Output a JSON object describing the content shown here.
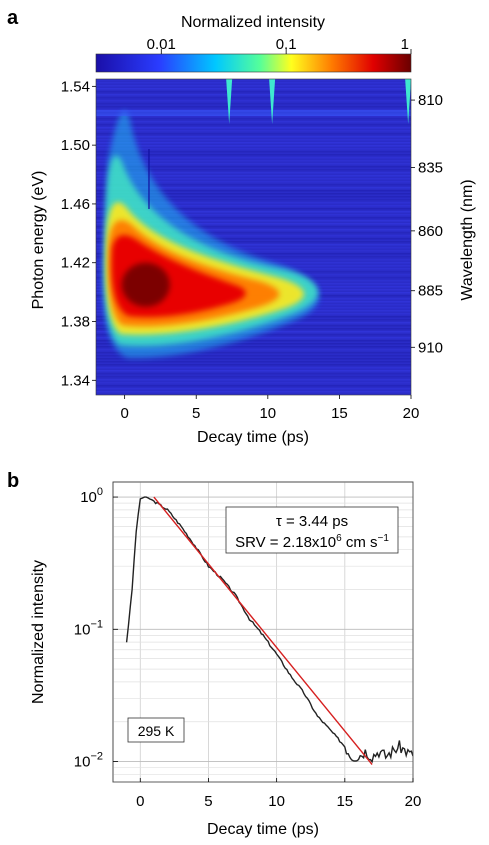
{
  "panel_a": {
    "letter": "a",
    "colorbar": {
      "title": "Normalized intensity",
      "tick_labels": [
        "0.01",
        "0.1",
        "1"
      ],
      "tick_values": [
        0.01,
        0.1,
        1
      ],
      "colormap": [
        "#1a0fa8",
        "#2a3cff",
        "#00c8ff",
        "#55ff9a",
        "#ffff1e",
        "#ff7a00",
        "#e00000",
        "#6a0000"
      ]
    },
    "xlabel": "Decay time (ps)",
    "ylabel_left": "Photon energy (eV)",
    "ylabel_right": "Wavelength (nm)",
    "x_ticks": [
      "0",
      "5",
      "10",
      "15",
      "20"
    ],
    "y_ticks_left": [
      "1.54",
      "1.50",
      "1.46",
      "1.42",
      "1.38",
      "1.34"
    ],
    "y_ticks_right": [
      "810",
      "835",
      "860",
      "885",
      "910"
    ]
  },
  "panel_b": {
    "letter": "b",
    "xlabel": "Decay time (ps)",
    "ylabel": "Normalized intensity",
    "x_ticks": [
      "0",
      "5",
      "10",
      "15",
      "20"
    ],
    "annotation_tau": "τ = 3.44 ps",
    "annotation_srv": "SRV = 2.18x10",
    "annotation_srv_exp": "6",
    "annotation_srv_unit": " cm s",
    "annotation_srv_unit_exp": "−1",
    "temperature_label": "295 K"
  },
  "chart_data": [
    {
      "type": "heatmap",
      "title": "",
      "xlabel": "Decay time (ps)",
      "ylabel": "Photon energy (eV)",
      "y2label": "Wavelength (nm)",
      "xlim": [
        -2,
        20
      ],
      "ylim": [
        1.33,
        1.545
      ],
      "x_ticks": [
        0,
        5,
        10,
        15,
        20
      ],
      "y_ticks": [
        1.34,
        1.38,
        1.42,
        1.46,
        1.5,
        1.54
      ],
      "y2_ticks": [
        810,
        835,
        860,
        885,
        910
      ],
      "colorbar_label": "Normalized intensity",
      "colorbar_scale": "log",
      "colorbar_range": [
        0.003,
        1
      ],
      "peak": {
        "time_ps": 0.5,
        "energy_ev": 1.405,
        "intensity": 1
      },
      "decay_lifetime_ps": 3.44
    },
    {
      "type": "line",
      "title": "",
      "xlabel": "Decay time (ps)",
      "ylabel": "Normalized intensity",
      "xlim": [
        -2,
        20
      ],
      "ylim": [
        0.007,
        1.3
      ],
      "y_scale": "log",
      "grid": true,
      "series": [
        {
          "color": "#222222",
          "x": [
            -1,
            -0.6,
            -0.3,
            0,
            0.3,
            0.7,
            1,
            2,
            3,
            4,
            5,
            6,
            7,
            8,
            9,
            10,
            11,
            12,
            13,
            14,
            15,
            15.5,
            16,
            16.5,
            17,
            17.5,
            18,
            18.5,
            19,
            19.5,
            20
          ],
          "y": [
            0.08,
            0.2,
            0.55,
            0.97,
            1.0,
            0.97,
            0.93,
            0.8,
            0.6,
            0.43,
            0.3,
            0.24,
            0.18,
            0.12,
            0.09,
            0.065,
            0.045,
            0.033,
            0.022,
            0.017,
            0.013,
            0.011,
            0.011,
            0.012,
            0.011,
            0.012,
            0.011,
            0.012,
            0.013,
            0.012,
            0.011
          ]
        },
        {
          "color": "#d62020",
          "x": [
            1,
            17
          ],
          "y": [
            1.0,
            0.0095
          ]
        }
      ],
      "annotations": [
        "τ = 3.44 ps",
        "SRV = 2.18x10⁶ cm s⁻¹",
        "295 K"
      ]
    }
  ]
}
